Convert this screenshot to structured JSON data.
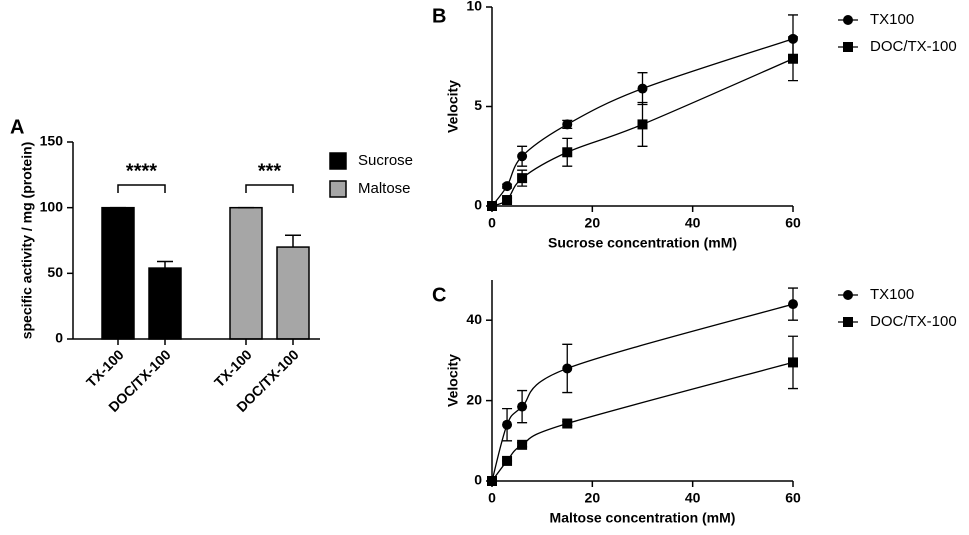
{
  "chart_data": [
    {
      "type": "bar",
      "panel_label": "A",
      "y_label": "specific activity / mg (protein)",
      "categories": [
        "TX-100",
        "DOC/TX-100",
        "TX-100",
        "DOC/TX-100"
      ],
      "series": [
        {
          "name": "Sucrose",
          "color": "#000000",
          "values": [
            100,
            54,
            null,
            null
          ],
          "errors": [
            0,
            5,
            null,
            null
          ]
        },
        {
          "name": "Maltose",
          "color": "#a6a6a6",
          "values": [
            null,
            null,
            100,
            70
          ],
          "errors": [
            null,
            null,
            0,
            9
          ]
        }
      ],
      "annotations": [
        "****",
        "***"
      ],
      "ylim": [
        0,
        150
      ],
      "yticks": [
        0,
        50,
        100,
        150
      ],
      "legend": "right"
    },
    {
      "type": "scatter",
      "panel_label": "B",
      "x_label": "Sucrose concentration (mM)",
      "y_label": "Velocity",
      "x": [
        0,
        3,
        6,
        15,
        30,
        60
      ],
      "series": [
        {
          "name": "TX100",
          "color": "#000000",
          "marker": "circle",
          "values": [
            0,
            1.0,
            2.5,
            4.1,
            5.9,
            8.4
          ],
          "errors": [
            0,
            0.1,
            0.5,
            0.2,
            0.8,
            1.2
          ]
        },
        {
          "name": "DOC/TX-100",
          "color": "#000000",
          "marker": "square",
          "values": [
            0,
            0.3,
            1.4,
            2.7,
            4.1,
            7.4
          ],
          "errors": [
            0,
            0.1,
            0.4,
            0.7,
            1.1,
            1.1
          ]
        }
      ],
      "xlim": [
        0,
        60
      ],
      "xticks": [
        0,
        20,
        40,
        60
      ],
      "ylim": [
        0,
        10
      ],
      "yticks": [
        0,
        5,
        10
      ],
      "legend": "right"
    },
    {
      "type": "scatter",
      "panel_label": "C",
      "x_label": "Maltose concentration (mM)",
      "y_label": "Velocity",
      "x": [
        0,
        3,
        6,
        15,
        60
      ],
      "series": [
        {
          "name": "TX100",
          "color": "#000000",
          "marker": "circle",
          "values": [
            0,
            14,
            18.5,
            28,
            44
          ],
          "errors": [
            0,
            4,
            4,
            6,
            4
          ]
        },
        {
          "name": "DOC/TX-100",
          "color": "#000000",
          "marker": "square",
          "values": [
            0,
            5,
            9,
            14.3,
            29.5
          ],
          "errors": [
            0,
            0,
            0.5,
            0.5,
            6.5
          ]
        }
      ],
      "xlim": [
        0,
        60
      ],
      "xticks": [
        0,
        20,
        40,
        60
      ],
      "ylim": [
        0,
        50
      ],
      "yticks": [
        0,
        20,
        40
      ],
      "legend": "right"
    }
  ]
}
